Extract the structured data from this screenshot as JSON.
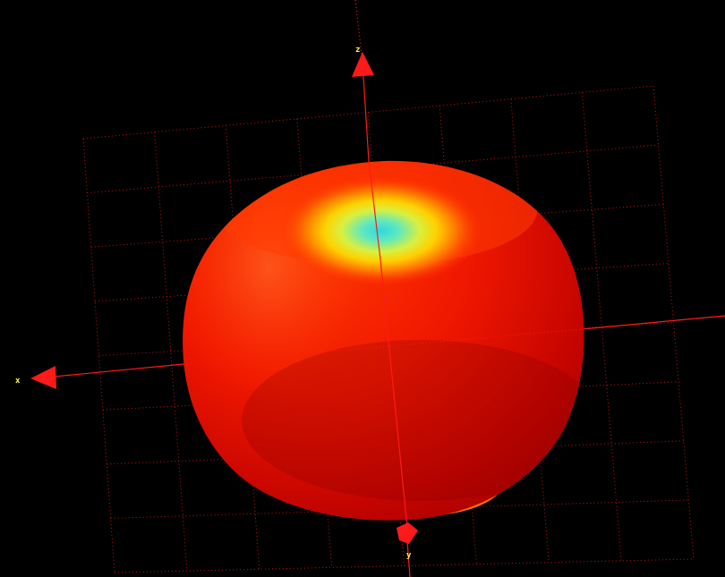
{
  "scene": {
    "background": "#000000",
    "grid_color": "#c81414",
    "axis_color": "#ff1a1a",
    "label_color": "#ffff33",
    "surface_colors": {
      "outer": "#b30000",
      "main": "#ff2000",
      "rim": "#ff6a00",
      "mid": "#ffe000",
      "inner": "#40e0d0"
    }
  },
  "axes": {
    "z_label": "z",
    "x_label": "x",
    "y_label": "y"
  }
}
